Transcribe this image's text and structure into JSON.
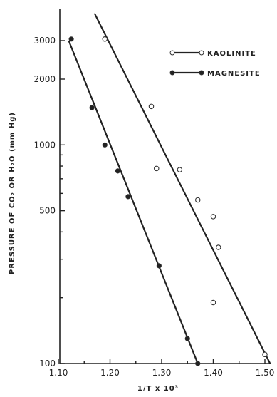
{
  "chart_data": {
    "type": "scatter",
    "title": "",
    "xlabel": "1/T x 10³",
    "ylabel": "PRESSURE OF CO₂ OR H₂O (mm Hg)",
    "x_scale": "linear",
    "y_scale": "log",
    "xlim": [
      1.1,
      1.51
    ],
    "ylim": [
      100,
      4000
    ],
    "x_ticks": [
      1.1,
      1.2,
      1.3,
      1.4,
      1.5
    ],
    "x_tick_labels": [
      "1.10",
      "1.20",
      "1.30",
      "1.40",
      "1.50"
    ],
    "y_ticks": [
      100,
      500,
      1000,
      2000,
      3000
    ],
    "y_tick_labels": [
      "100",
      "500",
      "1000",
      "2000",
      "3000"
    ],
    "legend_position": "top-right",
    "grid": false,
    "series": [
      {
        "name": "KAOLINITE",
        "marker": "open-circle",
        "x": [
          1.19,
          1.28,
          1.29,
          1.335,
          1.37,
          1.4,
          1.41,
          1.4,
          1.5
        ],
        "y": [
          3050,
          1500,
          780,
          770,
          560,
          470,
          340,
          190,
          110
        ],
        "fit_line": {
          "x": [
            1.17,
            1.51
          ],
          "y": [
            4000,
            100
          ]
        }
      },
      {
        "name": "MAGNESITE",
        "marker": "filled-circle",
        "x": [
          1.125,
          1.165,
          1.19,
          1.215,
          1.235,
          1.295,
          1.35,
          1.37
        ],
        "y": [
          3050,
          1480,
          1000,
          760,
          580,
          280,
          130,
          100
        ],
        "fit_line": {
          "x": [
            1.12,
            1.37
          ],
          "y": [
            3000,
            100
          ]
        }
      }
    ]
  }
}
